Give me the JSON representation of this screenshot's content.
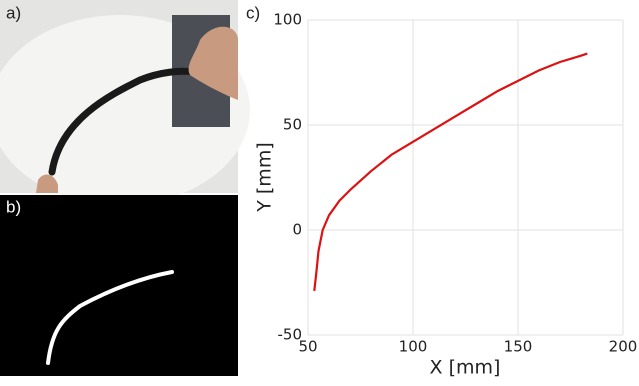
{
  "panels": {
    "a": "a)",
    "b": "b)",
    "c": "c)"
  },
  "chart_data": {
    "type": "line",
    "x": [
      53,
      54,
      55,
      57,
      60,
      65,
      70,
      80,
      90,
      100,
      110,
      120,
      130,
      140,
      150,
      160,
      170,
      180,
      183
    ],
    "series": [
      {
        "color": "#dd1111",
        "values": [
          -29,
          -20,
          -10,
          0,
          7,
          14,
          19,
          28,
          36,
          42,
          48,
          54,
          60,
          66,
          71,
          76,
          80,
          83,
          84
        ]
      }
    ],
    "xlim": [
      50,
      200
    ],
    "ylim": [
      -50,
      100
    ],
    "xticks": [
      50,
      100,
      150,
      200
    ],
    "yticks": [
      -50,
      0,
      50,
      100
    ],
    "xlabel": "X [mm]",
    "ylabel": "Y [mm]",
    "grid": true
  }
}
